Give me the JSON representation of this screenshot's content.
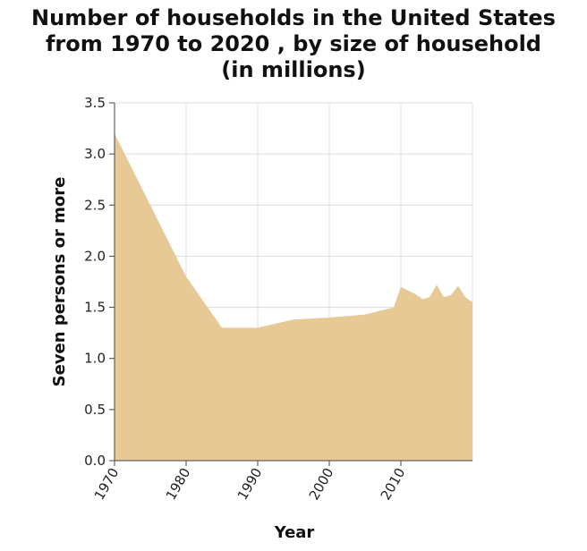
{
  "chart_data": {
    "type": "area",
    "title_lines": [
      "Number of households in the United States",
      "from 1970 to 2020 , by size of household",
      "(in millions)"
    ],
    "xlabel": "Year",
    "ylabel": "Seven persons or more",
    "xlim": [
      1970,
      2020
    ],
    "ylim": [
      0,
      3.5
    ],
    "x_ticks": [
      1970,
      1980,
      1990,
      2000,
      2010
    ],
    "y_ticks": [
      "0.0",
      "0.5",
      "1.0",
      "1.5",
      "2.0",
      "2.5",
      "3.0",
      "3.5"
    ],
    "grid": true,
    "fill_color": "#e6c994",
    "series": [
      {
        "x": [
          1970,
          1980,
          1985,
          1990,
          1995,
          2000,
          2005,
          2009,
          2010,
          2012,
          2013,
          2014,
          2015,
          2016,
          2017,
          2018,
          2019,
          2020
        ],
        "values": [
          3.2,
          1.8,
          1.3,
          1.3,
          1.38,
          1.4,
          1.43,
          1.5,
          1.7,
          1.63,
          1.58,
          1.6,
          1.72,
          1.6,
          1.62,
          1.71,
          1.6,
          1.55
        ]
      }
    ]
  }
}
